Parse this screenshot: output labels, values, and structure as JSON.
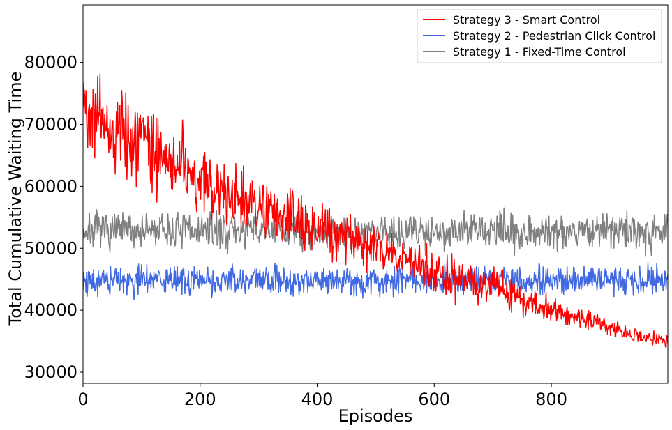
{
  "chart_data": {
    "type": "line",
    "title": "",
    "xlabel": "Episodes",
    "ylabel": "Total Cumulative Waiting Time",
    "xlim": [
      0,
      999
    ],
    "ylim": [
      28200,
      89300
    ],
    "xticks": [
      0,
      200,
      400,
      600,
      800
    ],
    "yticks": [
      30000,
      40000,
      50000,
      60000,
      70000,
      80000
    ],
    "grid": false,
    "legend_position": "upper right",
    "series_colors": [
      "#ff0000",
      "#4169e1",
      "#808080"
    ],
    "series": [
      {
        "name": "Strategy 3 - Smart Control",
        "color": "#ff0000",
        "x": [
          0,
          25,
          50,
          75,
          100,
          125,
          150,
          175,
          200,
          225,
          250,
          275,
          300,
          325,
          350,
          375,
          400,
          425,
          450,
          475,
          500,
          525,
          550,
          575,
          600,
          625,
          650,
          675,
          700,
          725,
          750,
          775,
          800,
          825,
          850,
          875,
          900,
          925,
          950,
          975,
          999
        ],
        "values": [
          74000,
          71000,
          69000,
          68000,
          67000,
          65500,
          64000,
          62000,
          60500,
          59500,
          58500,
          57500,
          56500,
          55500,
          54800,
          54000,
          53500,
          52800,
          52000,
          51000,
          50200,
          49300,
          48300,
          47200,
          46300,
          45500,
          44800,
          44400,
          43800,
          42800,
          41800,
          40800,
          40000,
          39400,
          38800,
          38200,
          37200,
          36200,
          35600,
          35300,
          35200
        ],
        "noise": [
          6500,
          6500,
          6300,
          6200,
          6000,
          5800,
          5600,
          5400,
          5200,
          5000,
          4800,
          4600,
          4400,
          4200,
          4000,
          3900,
          3800,
          3700,
          3600,
          3500,
          3400,
          3300,
          3200,
          3100,
          3000,
          3000,
          2900,
          2800,
          2700,
          2500,
          2300,
          2100,
          1900,
          1700,
          1600,
          1500,
          1400,
          1300,
          1200,
          1100,
          1000
        ]
      },
      {
        "name": "Strategy 2 - Pedestrian Click Control",
        "color": "#4169e1",
        "x": [
          0,
          999
        ],
        "values": [
          44800,
          44800
        ],
        "noise": [
          2200,
          2200
        ]
      },
      {
        "name": "Strategy 1 - Fixed-Time Control",
        "color": "#808080",
        "x": [
          0,
          999
        ],
        "values": [
          52800,
          52800
        ],
        "noise": [
          2700,
          2700
        ]
      }
    ]
  }
}
